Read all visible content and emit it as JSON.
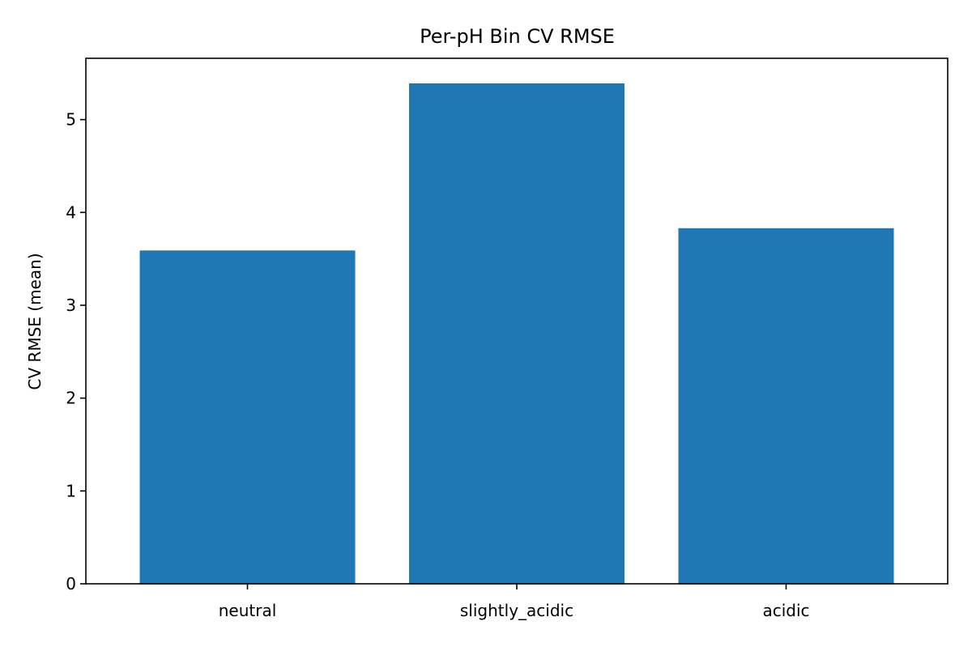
{
  "chart_data": {
    "type": "bar",
    "title": "Per-pH Bin CV RMSE",
    "xlabel": "",
    "ylabel": "CV RMSE (mean)",
    "categories": [
      "neutral",
      "slightly_acidic",
      "acidic"
    ],
    "values": [
      3.59,
      5.39,
      3.83
    ],
    "ylim": [
      0,
      5.66
    ],
    "yticks": [
      0,
      1,
      2,
      3,
      4,
      5
    ],
    "grid": false,
    "bar_color": "#1f77b4"
  }
}
